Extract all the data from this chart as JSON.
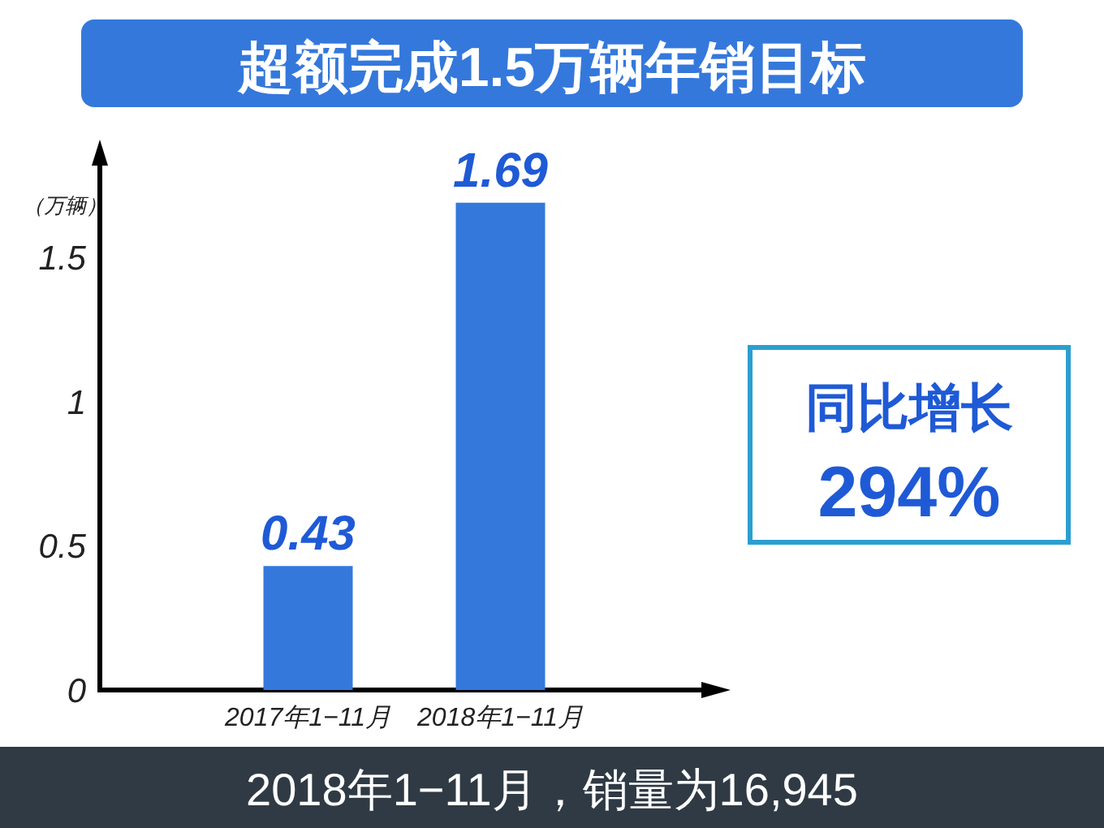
{
  "chart_data": {
    "type": "bar",
    "title": "超额完成1.5万辆年销目标",
    "ylabel": "（万辆）",
    "categories": [
      "2017年1−11月",
      "2018年1−11月"
    ],
    "values": [
      0.43,
      1.69
    ],
    "color": "#3478dc",
    "data_labels": true,
    "ylim": [
      0,
      1.83
    ],
    "yticks": [
      0,
      0.5,
      1,
      1.5
    ],
    "grid": false,
    "annotations": [
      "同比增长",
      "294%",
      "2018年1−11月，销量为16,945"
    ]
  }
}
